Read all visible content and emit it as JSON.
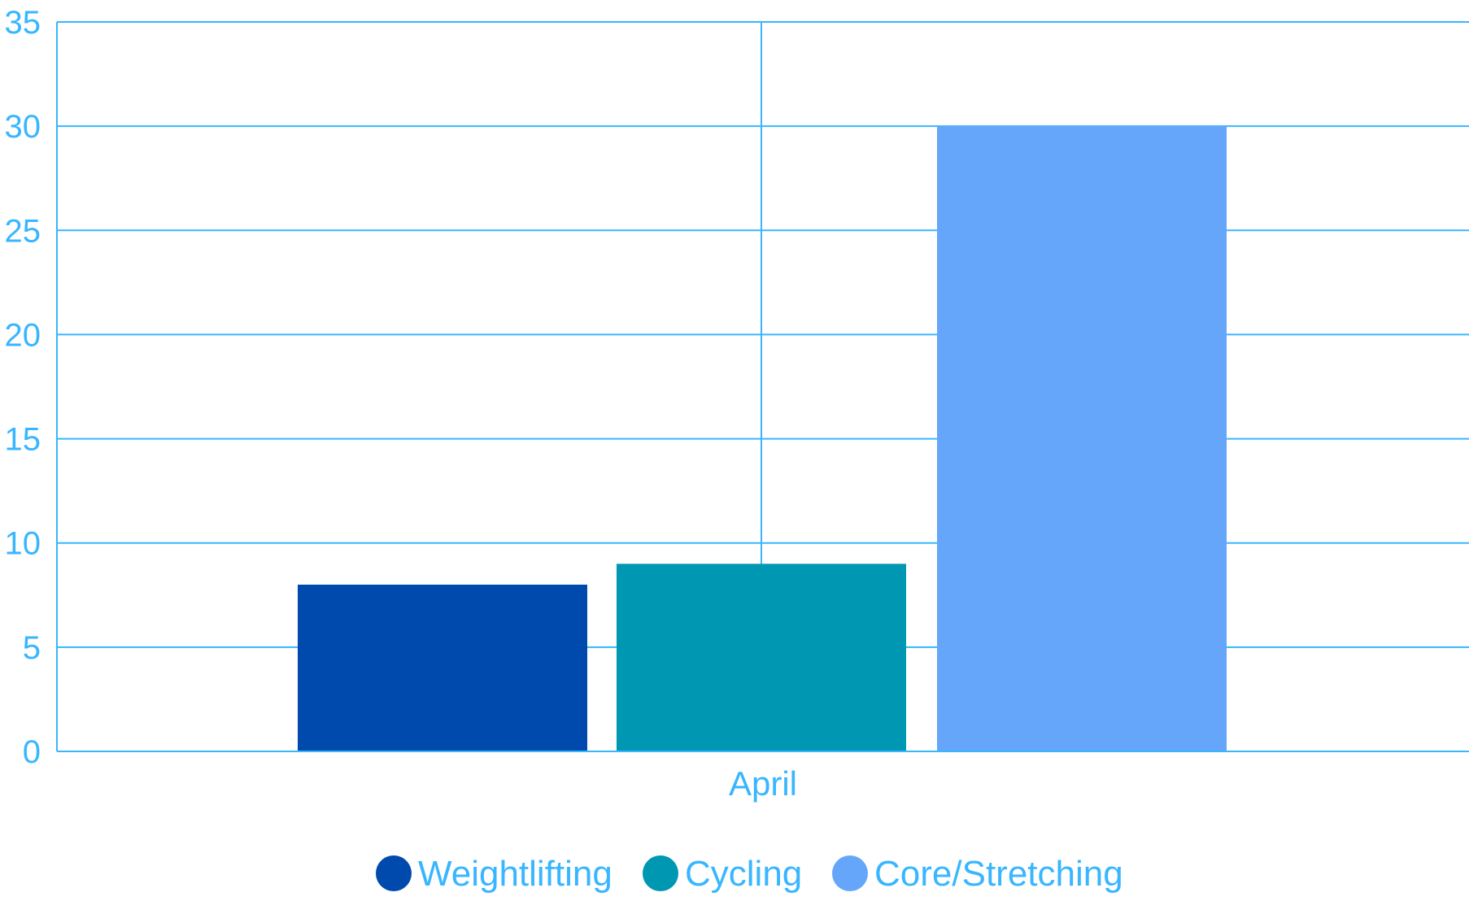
{
  "chart_data": {
    "type": "bar",
    "categories": [
      "April"
    ],
    "series": [
      {
        "name": "Weightlifting",
        "values": [
          8
        ],
        "color": "#004aad"
      },
      {
        "name": "Cycling",
        "values": [
          9
        ],
        "color": "#0097b2"
      },
      {
        "name": "Core/Stretching",
        "values": [
          30
        ],
        "color": "#66a6fa"
      }
    ],
    "title": "",
    "xlabel": "",
    "ylabel": "",
    "ylim": [
      0,
      35
    ],
    "yticks": [
      0,
      5,
      10,
      15,
      20,
      25,
      30,
      35
    ],
    "grid": true,
    "legend_position": "bottom-center",
    "colors": {
      "axis": "#38b6ff",
      "text": "#38b6ff",
      "background": "#ffffff"
    }
  }
}
